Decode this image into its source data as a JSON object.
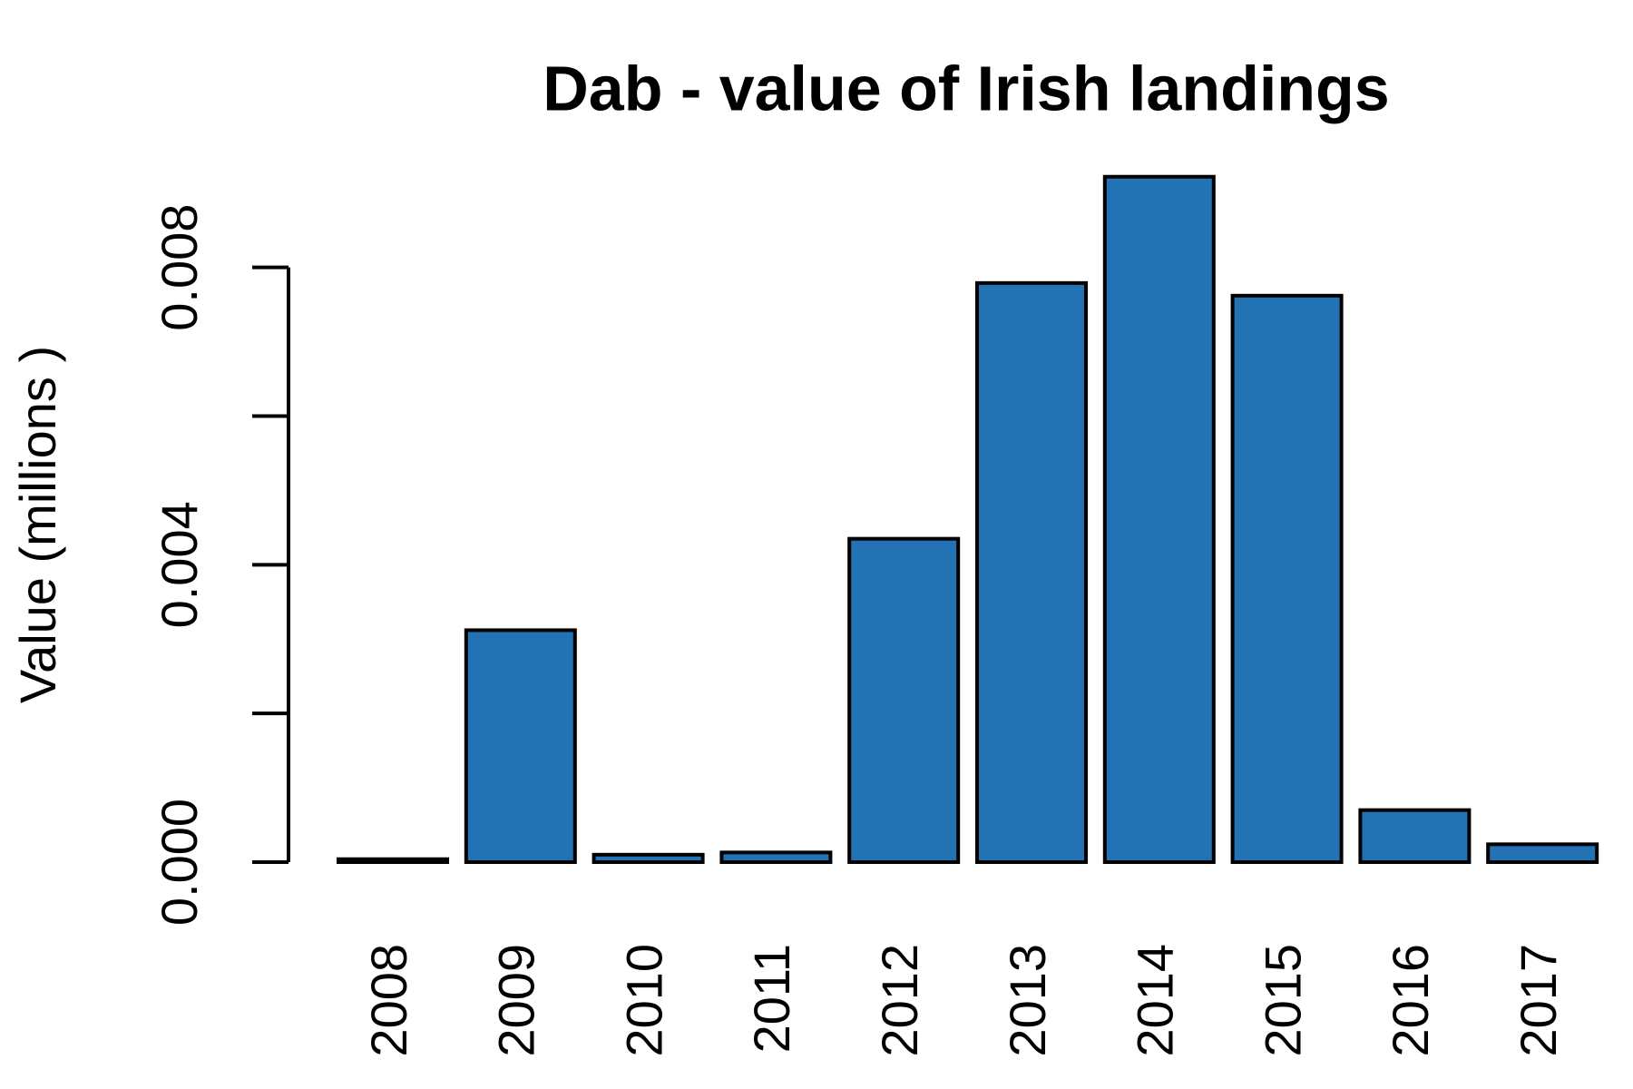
{
  "chart_data": {
    "type": "bar",
    "title": "Dab - value of Irish landings",
    "y_label": "Value (millions )",
    "categories": [
      "2008",
      "2009",
      "2010",
      "2011",
      "2012",
      "2013",
      "2014",
      "2015",
      "2016",
      "2017"
    ],
    "values": [
      4e-05,
      0.00312,
      0.0001,
      0.00013,
      0.00435,
      0.00779,
      0.00922,
      0.00762,
      0.0007,
      0.00024
    ],
    "color": "#2272b4",
    "ylim": [
      0,
      0.0094
    ],
    "yticks": [
      {
        "value": 0,
        "label": "0.000"
      },
      {
        "value": 0.002
      },
      {
        "value": 0.004,
        "label": "0.004"
      },
      {
        "value": 0.006
      },
      {
        "value": 0.008,
        "label": "0.008"
      }
    ],
    "grid": false
  }
}
